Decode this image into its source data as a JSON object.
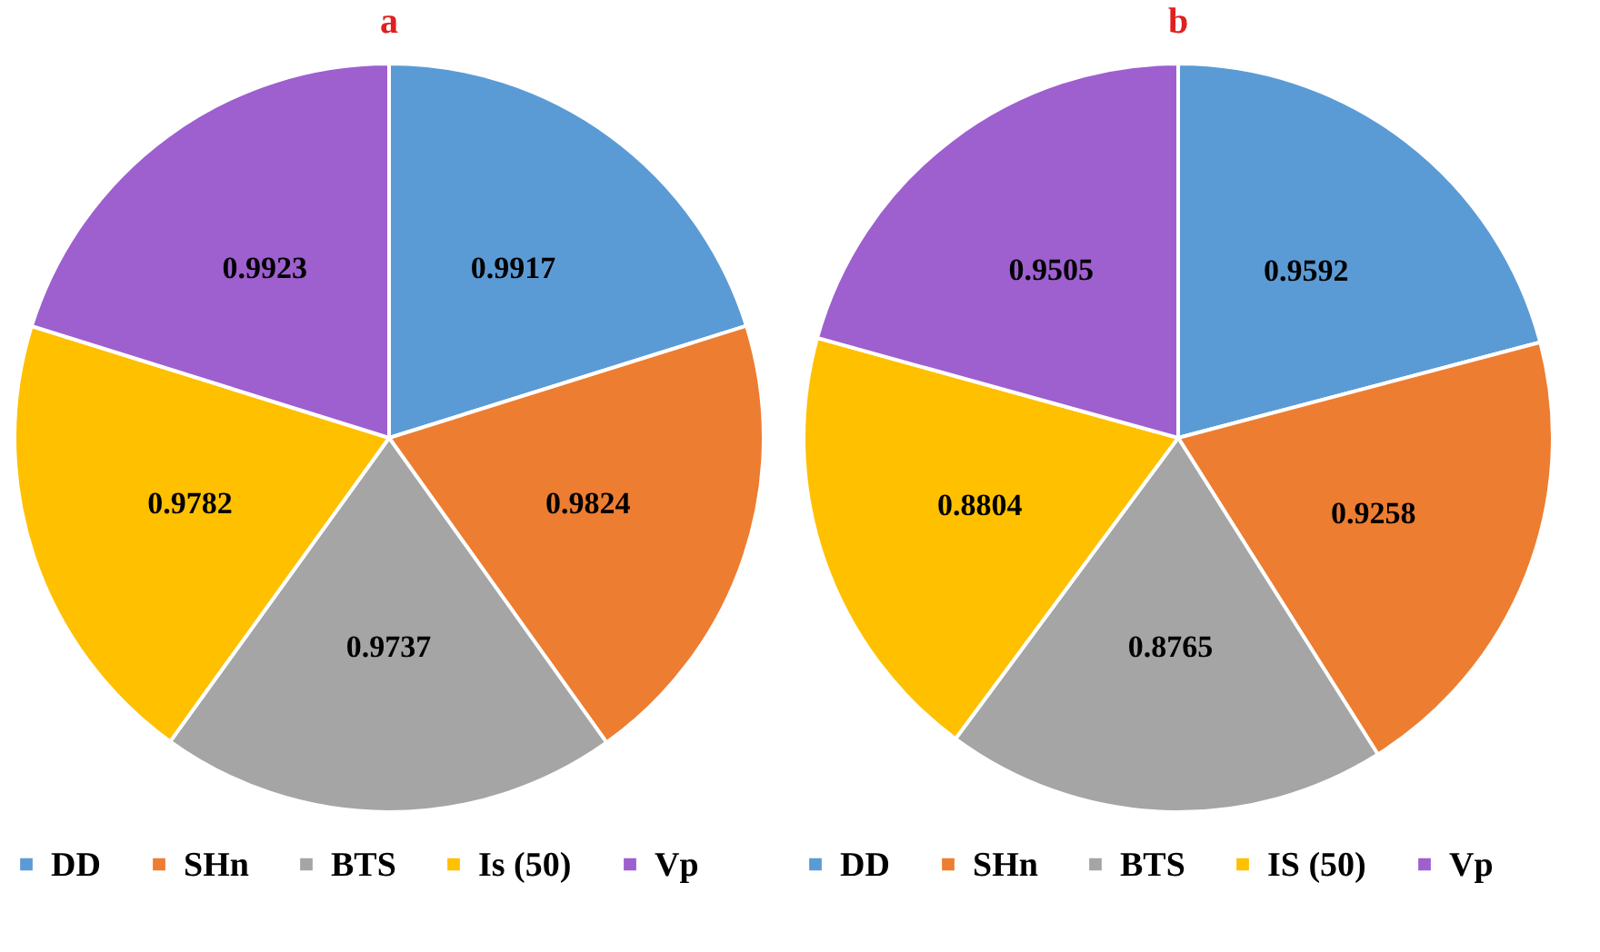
{
  "chart_data": [
    {
      "type": "pie",
      "title": "a",
      "categories": [
        "DD",
        "SHn",
        "BTS",
        "Is (50)",
        "Vp"
      ],
      "values": [
        0.9917,
        0.9824,
        0.9737,
        0.9782,
        0.9923
      ],
      "colors": [
        "#5b9bd5",
        "#ed7d31",
        "#a5a5a5",
        "#ffc000",
        "#9e5fcf"
      ],
      "data_labels": true,
      "legend": "bottom"
    },
    {
      "type": "pie",
      "title": "b",
      "categories": [
        "DD",
        "SHn",
        "BTS",
        "IS (50)",
        "Vp"
      ],
      "values": [
        0.9592,
        0.9258,
        0.8765,
        0.8804,
        0.9505
      ],
      "colors": [
        "#5b9bd5",
        "#ed7d31",
        "#a5a5a5",
        "#ffc000",
        "#9e5fcf"
      ],
      "data_labels": true,
      "legend": "bottom"
    }
  ]
}
